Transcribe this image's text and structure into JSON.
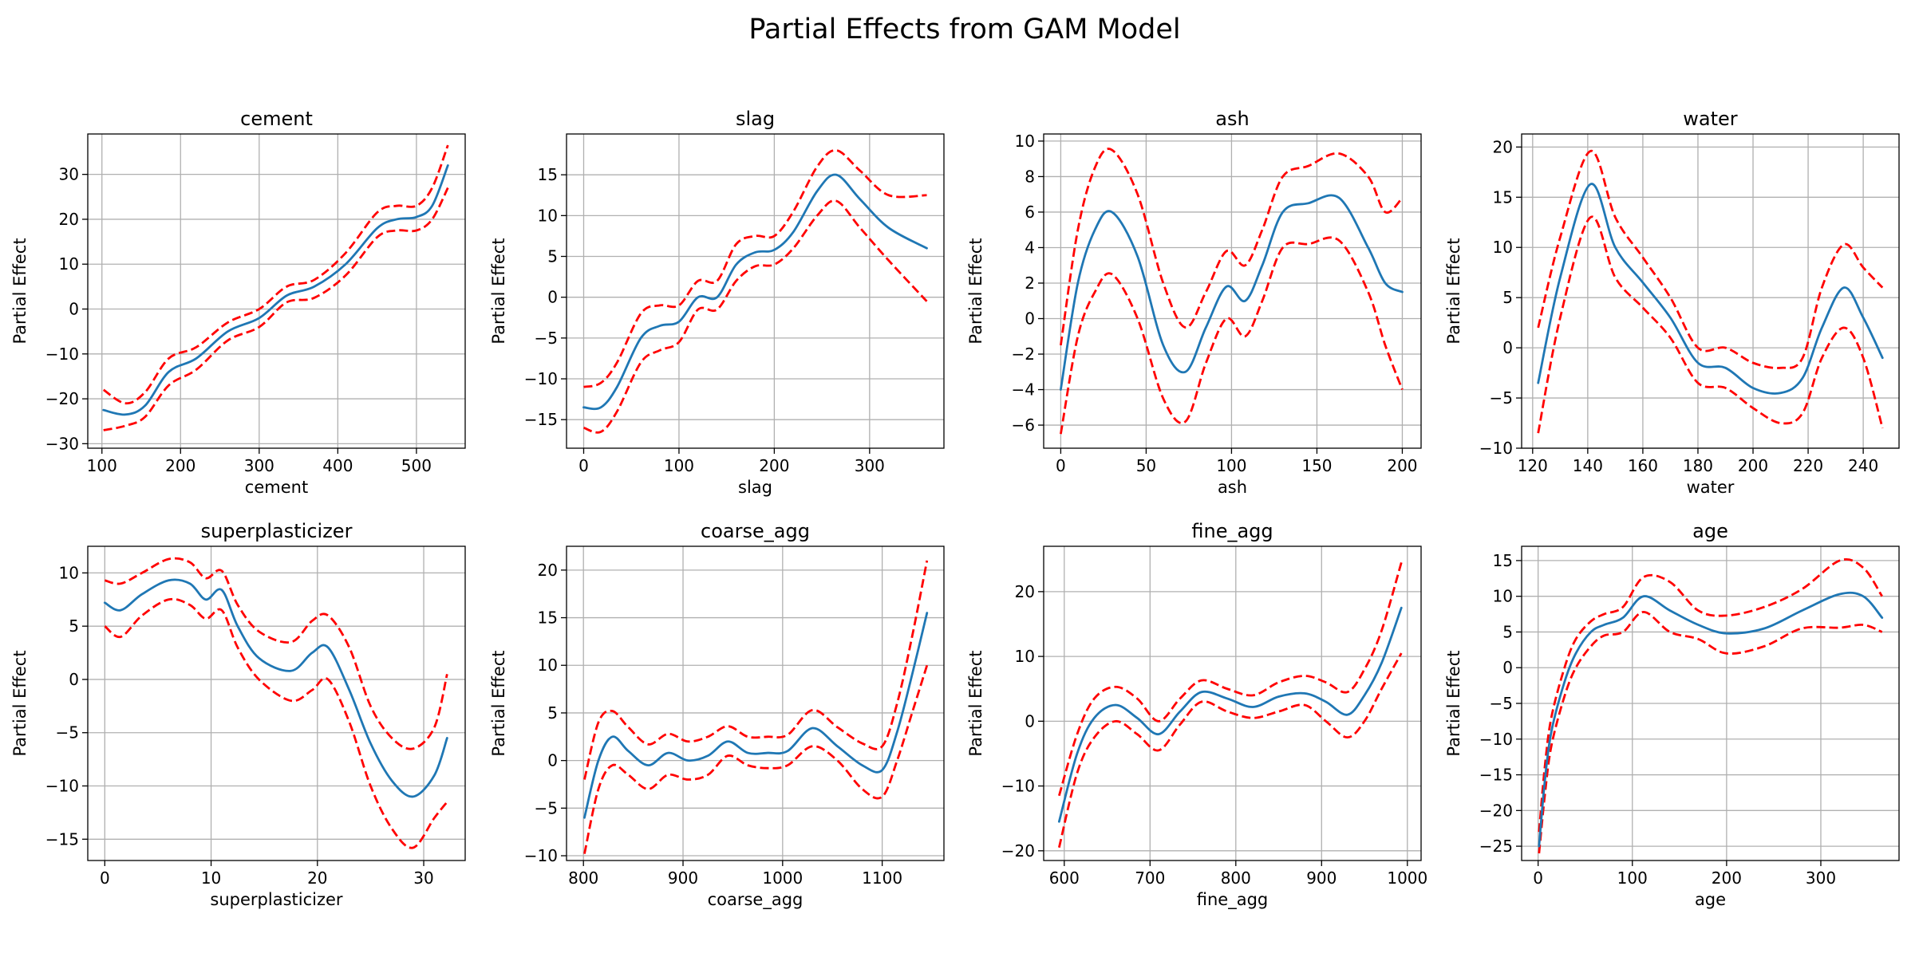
{
  "figure": {
    "title": "Partial Effects from GAM Model",
    "ylabel": "Partial Effect",
    "colors": {
      "fit": "#1f77b4",
      "ci": "#ff0000",
      "grid": "#b0b0b0"
    }
  },
  "chart_data": [
    {
      "type": "line",
      "title": "cement",
      "xlabel": "cement",
      "ylabel": "Partial Effect",
      "xlim": [
        82,
        562
      ],
      "ylim": [
        -31,
        39
      ],
      "grid": true,
      "xticks": [
        100,
        200,
        300,
        400,
        500
      ],
      "yticks": [
        -30,
        -20,
        -10,
        0,
        10,
        20,
        30
      ],
      "x": [
        102,
        130,
        155,
        185,
        220,
        260,
        300,
        335,
        370,
        410,
        450,
        475,
        500,
        520,
        540
      ],
      "series": [
        {
          "role": "fit",
          "values": [
            -22.5,
            -23.5,
            -21.5,
            -14,
            -11,
            -5,
            -2,
            3,
            5,
            10,
            18,
            20,
            20.5,
            23,
            32
          ]
        },
        {
          "role": "upper",
          "values": [
            -18,
            -21,
            -18.5,
            -11,
            -8.5,
            -3,
            0,
            5,
            6.5,
            12.5,
            21.5,
            23,
            23,
            27,
            36.5
          ]
        },
        {
          "role": "lower",
          "values": [
            -27,
            -26,
            -24,
            -17,
            -13.5,
            -7,
            -4,
            1.5,
            2.5,
            7.5,
            16,
            17.5,
            17.5,
            20,
            27
          ]
        }
      ]
    },
    {
      "type": "line",
      "title": "slag",
      "xlabel": "slag",
      "ylabel": "Partial Effect",
      "xlim": [
        -18,
        378
      ],
      "ylim": [
        -18.5,
        20
      ],
      "grid": true,
      "xticks": [
        0,
        100,
        200,
        300
      ],
      "yticks": [
        -15,
        -10,
        -5,
        0,
        5,
        10,
        15
      ],
      "x": [
        0,
        18,
        35,
        60,
        80,
        100,
        120,
        140,
        160,
        180,
        200,
        220,
        245,
        265,
        290,
        320,
        360
      ],
      "series": [
        {
          "role": "fit",
          "values": [
            -13.5,
            -13.5,
            -11,
            -5,
            -3.5,
            -3,
            0,
            0,
            4,
            5.5,
            5.8,
            8,
            13,
            15,
            12,
            8.5,
            6
          ]
        },
        {
          "role": "upper",
          "values": [
            -11,
            -10.5,
            -8,
            -2,
            -1,
            -1,
            2,
            2,
            6.5,
            7.5,
            7.5,
            10.5,
            16,
            18,
            15.5,
            12.5,
            12.5
          ]
        },
        {
          "role": "lower",
          "values": [
            -16,
            -16.5,
            -14,
            -8,
            -6.5,
            -5.5,
            -1.5,
            -1.5,
            2,
            3.8,
            4,
            6,
            10,
            11.8,
            8.5,
            4.5,
            -0.5
          ]
        }
      ]
    },
    {
      "type": "line",
      "title": "ash",
      "xlabel": "ash",
      "ylabel": "Partial Effect",
      "xlim": [
        -10,
        211
      ],
      "ylim": [
        -7.3,
        10.4
      ],
      "grid": true,
      "xticks": [
        0,
        50,
        100,
        150,
        200
      ],
      "yticks": [
        -6,
        -4,
        -2,
        0,
        2,
        4,
        6,
        8,
        10
      ],
      "x": [
        0,
        10,
        20,
        30,
        45,
        60,
        73,
        85,
        97,
        108,
        118,
        130,
        145,
        163,
        180,
        190,
        200
      ],
      "series": [
        {
          "role": "fit",
          "values": [
            -4,
            2,
            5,
            6,
            3.5,
            -1.5,
            -3,
            -0.5,
            1.8,
            1,
            3,
            6,
            6.5,
            6.8,
            4,
            2,
            1.5
          ]
        },
        {
          "role": "upper",
          "values": [
            -1.5,
            5,
            8.5,
            9.5,
            7,
            2,
            -0.5,
            1.5,
            3.8,
            3,
            5,
            8,
            8.6,
            9.3,
            8,
            6,
            6.8
          ]
        },
        {
          "role": "lower",
          "values": [
            -6.5,
            -1,
            1.5,
            2.5,
            0,
            -4.5,
            -5.8,
            -2.5,
            0,
            -1,
            1,
            4,
            4.2,
            4.4,
            1.5,
            -1.5,
            -4
          ]
        }
      ]
    },
    {
      "type": "line",
      "title": "water",
      "xlabel": "water",
      "ylabel": "Partial Effect",
      "xlim": [
        116,
        253
      ],
      "ylim": [
        -10,
        21.3
      ],
      "grid": true,
      "xticks": [
        120,
        140,
        160,
        180,
        200,
        220,
        240
      ],
      "yticks": [
        -10,
        -5,
        0,
        5,
        10,
        15,
        20
      ],
      "x": [
        122,
        130,
        141,
        150,
        160,
        170,
        180,
        190,
        200,
        210,
        218,
        225,
        233,
        240,
        247
      ],
      "series": [
        {
          "role": "fit",
          "values": [
            -3.5,
            7,
            16.3,
            10,
            6.5,
            3,
            -1.5,
            -2,
            -4,
            -4.5,
            -3,
            2,
            6,
            3,
            -1
          ]
        },
        {
          "role": "upper",
          "values": [
            2,
            11,
            19.6,
            13,
            9,
            5,
            0,
            0,
            -1.5,
            -2,
            -1,
            6,
            10.3,
            8,
            6
          ]
        },
        {
          "role": "lower",
          "values": [
            -8.5,
            3,
            13,
            7,
            4,
            1,
            -3.5,
            -4,
            -6,
            -7.5,
            -6.5,
            -1,
            2,
            -1,
            -8
          ]
        }
      ]
    },
    {
      "type": "line",
      "title": "superplasticizer",
      "xlabel": "superplasticizer",
      "ylabel": "Partial Effect",
      "xlim": [
        -1.6,
        33.9
      ],
      "ylim": [
        -17,
        12.5
      ],
      "grid": true,
      "xticks": [
        0,
        10,
        20,
        30
      ],
      "yticks": [
        -15,
        -10,
        -5,
        0,
        5,
        10
      ],
      "x": [
        0,
        1.5,
        3.5,
        6,
        8,
        9.5,
        11,
        12.5,
        14.5,
        17.5,
        19.5,
        21,
        23,
        25,
        27,
        29,
        31,
        32.2
      ],
      "series": [
        {
          "role": "fit",
          "values": [
            7.2,
            6.5,
            8,
            9.3,
            9,
            7.5,
            8.4,
            5,
            2,
            0.8,
            2.5,
            3,
            -1,
            -6,
            -9.5,
            -11,
            -9,
            -5.5
          ]
        },
        {
          "role": "upper",
          "values": [
            9.3,
            9,
            10,
            11.3,
            11,
            9.5,
            10.2,
            7,
            4.5,
            3.5,
            5.5,
            6,
            3,
            -2.5,
            -5.5,
            -6.5,
            -4.5,
            0.5
          ]
        },
        {
          "role": "lower",
          "values": [
            5,
            4,
            6,
            7.5,
            7,
            5.7,
            6.5,
            3,
            0,
            -2,
            -1,
            0,
            -4,
            -10,
            -14,
            -15.8,
            -13,
            -11.5
          ]
        }
      ]
    },
    {
      "type": "line",
      "title": "coarse_agg",
      "xlabel": "coarse_agg",
      "ylabel": "Partial Effect",
      "xlim": [
        783,
        1162
      ],
      "ylim": [
        -10.5,
        22.5
      ],
      "grid": true,
      "xticks": [
        800,
        900,
        1000,
        1100
      ],
      "yticks": [
        -10,
        -5,
        0,
        5,
        10,
        15,
        20
      ],
      "x": [
        801,
        815,
        829,
        845,
        865,
        885,
        905,
        925,
        945,
        965,
        985,
        1005,
        1030,
        1055,
        1080,
        1100,
        1115,
        1130,
        1145
      ],
      "series": [
        {
          "role": "fit",
          "values": [
            -6,
            0,
            2.5,
            1,
            -0.5,
            0.8,
            0,
            0.5,
            2,
            0.8,
            0.8,
            1,
            3.4,
            1.5,
            -0.5,
            -1,
            3,
            9,
            15.5
          ]
        },
        {
          "role": "upper",
          "values": [
            -2,
            4,
            5.2,
            3.5,
            1.7,
            2.8,
            2,
            2.5,
            3.6,
            2.5,
            2.5,
            2.7,
            5.3,
            3.5,
            1.8,
            1.5,
            6,
            13,
            21
          ]
        },
        {
          "role": "lower",
          "values": [
            -9.8,
            -3,
            -0.5,
            -1.5,
            -3,
            -1.5,
            -2,
            -1.5,
            0.5,
            -0.5,
            -0.8,
            -0.5,
            1.5,
            0,
            -3,
            -3.8,
            0,
            5,
            10
          ]
        }
      ]
    },
    {
      "type": "line",
      "title": "fine_agg",
      "xlabel": "fine_agg",
      "ylabel": "Partial Effect",
      "xlim": [
        576,
        1016
      ],
      "ylim": [
        -21.5,
        27
      ],
      "grid": true,
      "xticks": [
        600,
        700,
        800,
        900,
        1000
      ],
      "yticks": [
        -20,
        -10,
        0,
        10,
        20
      ],
      "x": [
        594,
        615,
        635,
        660,
        685,
        710,
        735,
        760,
        790,
        820,
        850,
        880,
        905,
        930,
        950,
        970,
        993
      ],
      "series": [
        {
          "role": "fit",
          "values": [
            -15.5,
            -5,
            0.5,
            2.5,
            0.5,
            -2,
            1.5,
            4.5,
            3.5,
            2.2,
            3.8,
            4.3,
            3,
            1,
            4,
            9,
            17.5
          ]
        },
        {
          "role": "upper",
          "values": [
            -11.5,
            -2,
            3.5,
            5.3,
            3.5,
            0,
            3.5,
            6.3,
            5,
            4,
            6,
            7,
            6,
            4.5,
            8,
            14,
            24.5
          ]
        },
        {
          "role": "lower",
          "values": [
            -19.5,
            -8,
            -2.5,
            0,
            -2,
            -4.5,
            -0.5,
            3,
            1.5,
            0.5,
            1.5,
            2.5,
            0,
            -2.5,
            0,
            5,
            10.5
          ]
        }
      ]
    },
    {
      "type": "line",
      "title": "age",
      "xlabel": "age",
      "ylabel": "Partial Effect",
      "xlim": [
        -17.5,
        383
      ],
      "ylim": [
        -27,
        17
      ],
      "grid": true,
      "xticks": [
        0,
        100,
        200,
        300
      ],
      "yticks": [
        -25,
        -20,
        -15,
        -10,
        -5,
        0,
        5,
        10,
        15
      ],
      "x": [
        1,
        7,
        14,
        28,
        40,
        56,
        70,
        90,
        112,
        140,
        170,
        200,
        240,
        280,
        320,
        345,
        365
      ],
      "series": [
        {
          "role": "fit",
          "values": [
            -25,
            -16,
            -9,
            -2,
            2,
            5,
            6,
            7,
            10,
            8,
            6,
            4.8,
            5.5,
            8,
            10.3,
            10,
            7
          ]
        },
        {
          "role": "upper",
          "values": [
            -23,
            -14,
            -7,
            0,
            4,
            6.5,
            7.5,
            8.5,
            12.7,
            12,
            8,
            7.3,
            8.5,
            11,
            15,
            14,
            10
          ]
        },
        {
          "role": "lower",
          "values": [
            -26,
            -18,
            -11,
            -4,
            0,
            3,
            4.5,
            5,
            7.8,
            5,
            4,
            2,
            3,
            5.5,
            5.6,
            6,
            5
          ]
        }
      ]
    }
  ]
}
